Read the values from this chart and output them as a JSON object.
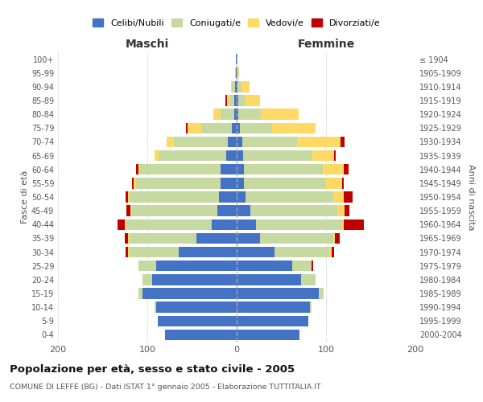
{
  "age_groups": [
    "0-4",
    "5-9",
    "10-14",
    "15-19",
    "20-24",
    "25-29",
    "30-34",
    "35-39",
    "40-44",
    "45-49",
    "50-54",
    "55-59",
    "60-64",
    "65-69",
    "70-74",
    "75-79",
    "80-84",
    "85-89",
    "90-94",
    "95-99",
    "100+"
  ],
  "birth_years": [
    "2000-2004",
    "1995-1999",
    "1990-1994",
    "1985-1989",
    "1980-1984",
    "1975-1979",
    "1970-1974",
    "1965-1969",
    "1960-1964",
    "1955-1959",
    "1950-1954",
    "1945-1949",
    "1940-1944",
    "1935-1939",
    "1930-1934",
    "1925-1929",
    "1920-1924",
    "1915-1919",
    "1910-1914",
    "1905-1909",
    "≤ 1904"
  ],
  "colors": {
    "celibi": "#4472C4",
    "coniugati": "#c5d9a0",
    "vedovi": "#ffd966",
    "divorziati": "#c00000"
  },
  "maschi": {
    "celibi": [
      80,
      88,
      90,
      105,
      95,
      90,
      65,
      45,
      28,
      22,
      20,
      18,
      18,
      12,
      10,
      5,
      3,
      3,
      2,
      1,
      1
    ],
    "coniugati": [
      0,
      0,
      2,
      5,
      10,
      20,
      55,
      75,
      95,
      95,
      100,
      95,
      90,
      75,
      60,
      35,
      15,
      5,
      3,
      1,
      0
    ],
    "vedovi": [
      0,
      0,
      0,
      0,
      0,
      0,
      2,
      2,
      2,
      2,
      2,
      2,
      2,
      5,
      8,
      15,
      8,
      3,
      1,
      0,
      0
    ],
    "divorziati": [
      0,
      0,
      0,
      0,
      0,
      0,
      2,
      3,
      8,
      4,
      2,
      2,
      3,
      0,
      0,
      2,
      0,
      2,
      0,
      0,
      0
    ]
  },
  "femmine": {
    "celibi": [
      70,
      80,
      82,
      92,
      72,
      62,
      42,
      26,
      22,
      15,
      10,
      8,
      8,
      7,
      6,
      4,
      2,
      2,
      1,
      0,
      0
    ],
    "coniugati": [
      0,
      0,
      2,
      5,
      16,
      22,
      62,
      82,
      96,
      98,
      98,
      92,
      88,
      78,
      62,
      36,
      25,
      8,
      4,
      1,
      0
    ],
    "vedovi": [
      0,
      0,
      0,
      0,
      0,
      0,
      2,
      2,
      2,
      8,
      12,
      18,
      24,
      24,
      48,
      48,
      42,
      16,
      9,
      2,
      1
    ],
    "divorziati": [
      0,
      0,
      0,
      0,
      0,
      2,
      3,
      5,
      22,
      5,
      10,
      2,
      5,
      2,
      5,
      0,
      0,
      0,
      0,
      0,
      0
    ]
  },
  "xlim": 200,
  "title": "Popolazione per età, sesso e stato civile - 2005",
  "subtitle": "COMUNE DI LEFFE (BG) - Dati ISTAT 1° gennaio 2005 - Elaborazione TUTTITALIA.IT",
  "ylabel_left": "Fasce di età",
  "ylabel_right": "Anni di nascita",
  "xlabel_maschi": "Maschi",
  "xlabel_femmine": "Femmine",
  "background_color": "#ffffff",
  "grid_color": "#cccccc",
  "legend_labels": [
    "Celibi/Nubili",
    "Coniugati/e",
    "Vedovi/e",
    "Divorziati/e"
  ]
}
